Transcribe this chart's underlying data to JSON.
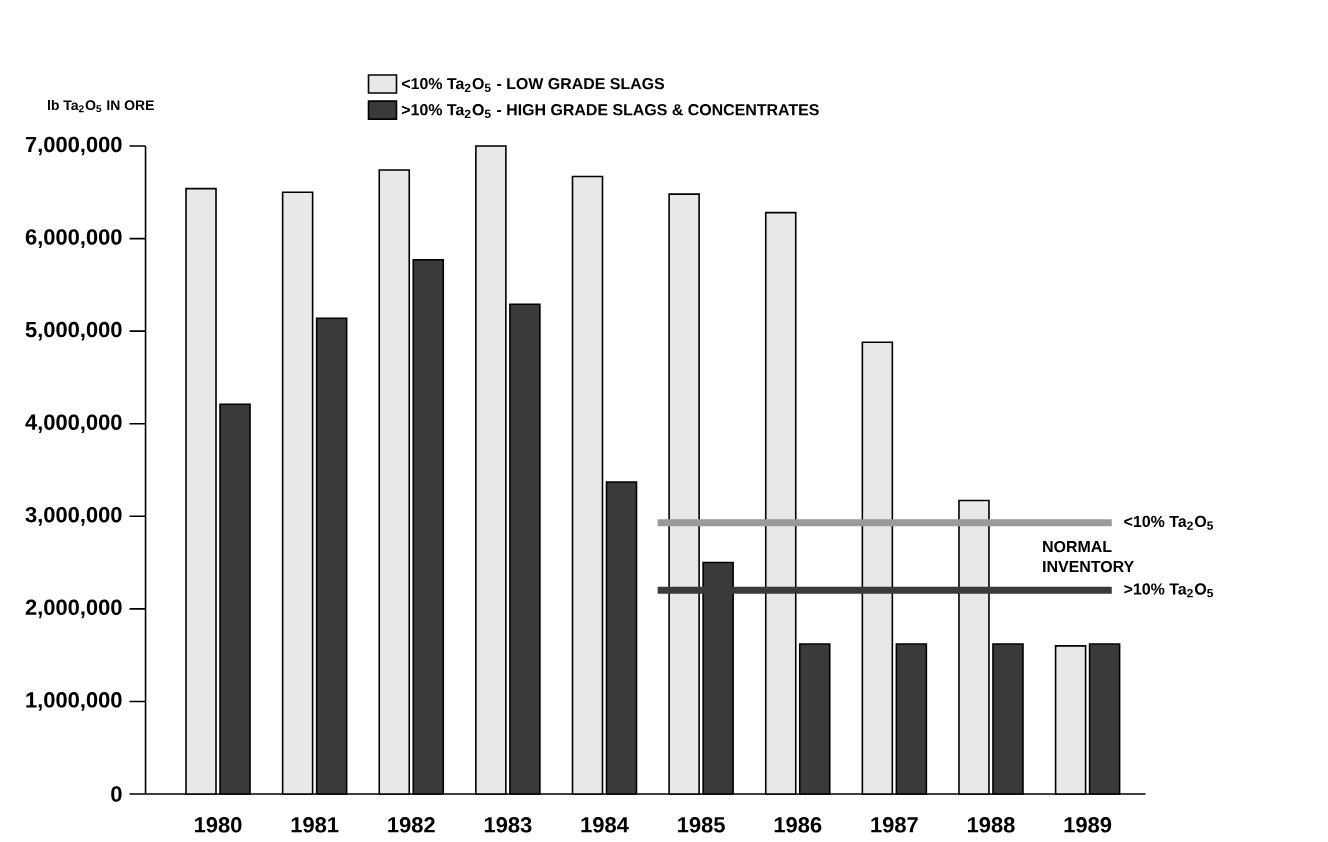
{
  "chart_data": {
    "type": "bar",
    "ylabel": "lb Ta$_{2}$O$_{5}$ IN ORE",
    "categories": [
      "1980",
      "1981",
      "1982",
      "1983",
      "1984",
      "1985",
      "1986",
      "1987",
      "1988",
      "1989"
    ],
    "series": [
      {
        "name": "<10% Ta$_{2}$O$_{5}$ - LOW GRADE SLAGS",
        "color": "#e8e8e8",
        "values": [
          6540000,
          6500000,
          6740000,
          7000000,
          6670000,
          6480000,
          6280000,
          4880000,
          3170000,
          1600000
        ]
      },
      {
        "name": ">10% Ta$_{2}$O$_{5}$ - HIGH GRADE SLAGS & CONCENTRATES",
        "color": "#3a3a3a",
        "values": [
          4210000,
          5140000,
          5770000,
          5290000,
          3370000,
          2500000,
          1620000,
          1620000,
          1620000,
          1620000
        ]
      }
    ],
    "ylim": [
      0,
      7000000
    ],
    "yticks": [
      {
        "value": 0,
        "label": "0"
      },
      {
        "value": 1000000,
        "label": "1,000,000"
      },
      {
        "value": 2000000,
        "label": "2,000,000"
      },
      {
        "value": 3000000,
        "label": "3,000,000"
      },
      {
        "value": 4000000,
        "label": "4,000,000"
      },
      {
        "value": 5000000,
        "label": "5,000,000"
      },
      {
        "value": 6000000,
        "label": "6,000,000"
      },
      {
        "value": 7000000,
        "label": "7,000,000"
      }
    ],
    "ref_lines": [
      {
        "axis": "y",
        "value": 2930000,
        "label": "<10% Ta$_{2}$O$_{5}$",
        "color": "#9a9a9a"
      },
      {
        "axis": "y",
        "value": 2200000,
        "label": ">10% Ta$_{2}$O$_{5}$",
        "color": "#3a3a3a"
      }
    ],
    "annotations": [
      "NORMAL INVENTORY"
    ],
    "legend": "top",
    "grid": false
  }
}
